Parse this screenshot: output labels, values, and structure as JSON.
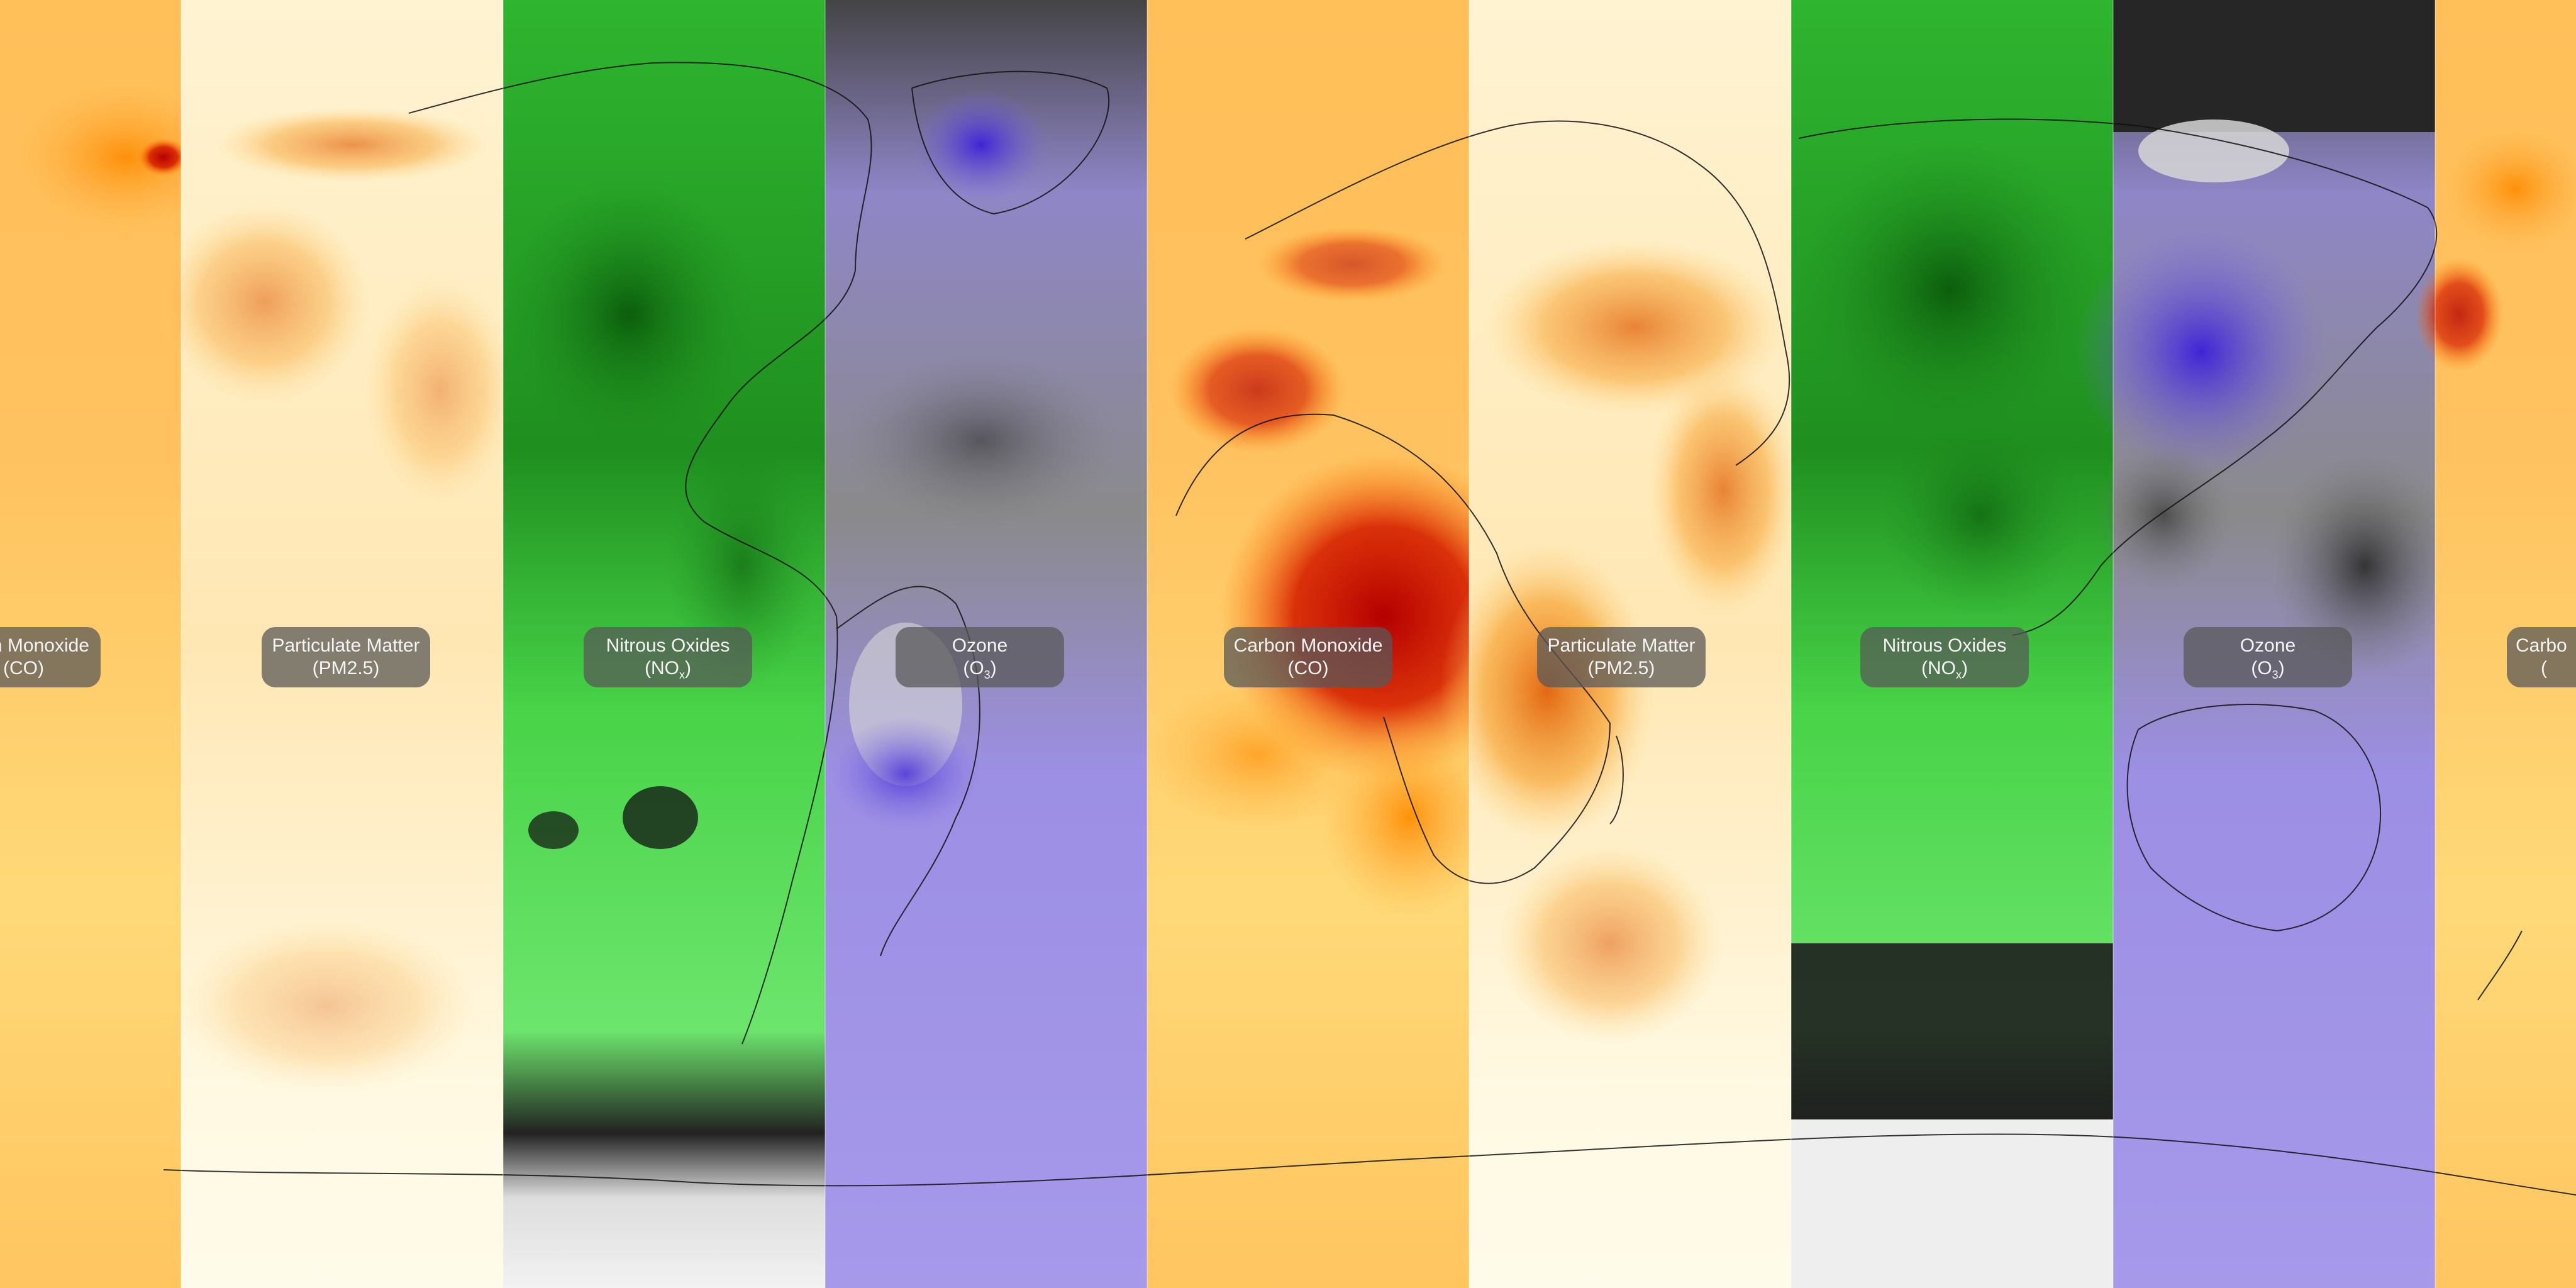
{
  "panels": [
    {
      "id": "co-a",
      "name": "Carbon Monoxide",
      "abbr": "(CO)",
      "sub": "",
      "color": "#ffc766"
    },
    {
      "id": "pm-a",
      "name": "Particulate Matter",
      "abbr": "(PM2.5)",
      "sub": "",
      "color": "#fff4d8"
    },
    {
      "id": "no-a",
      "name": "Nitrous Oxides",
      "abbr": "(NO",
      "sub": "x",
      "color": "#3fcf3f"
    },
    {
      "id": "o3-a",
      "name": "Ozone",
      "abbr": "(O",
      "sub": "3",
      "color": "#9b8de0"
    },
    {
      "id": "co-b",
      "name": "Carbon Monoxide",
      "abbr": "(CO)",
      "sub": "",
      "color": "#ffc766"
    },
    {
      "id": "pm-b",
      "name": "Particulate Matter",
      "abbr": "(PM2.5)",
      "sub": "",
      "color": "#fff4d8"
    },
    {
      "id": "no-b",
      "name": "Nitrous Oxides",
      "abbr": "(NO",
      "sub": "x",
      "color": "#3fcf3f"
    },
    {
      "id": "o3-b",
      "name": "Ozone",
      "abbr": "(O",
      "sub": "3",
      "color": "#9b8de0"
    },
    {
      "id": "co-c",
      "name": "Carbon",
      "abbr": "(",
      "sub": "",
      "color": "#ffc766"
    }
  ],
  "labels": {
    "co_a_line1": "n Monoxide",
    "co_a_line2": "(CO)",
    "pm_a_line1": "Particulate Matter",
    "pm_a_line2": "(PM2.5)",
    "no_a_line1": "Nitrous Oxides",
    "no_a_line2": "(NO",
    "no_a_sub": "x",
    "o3_a_line1": "Ozone",
    "o3_a_line2": "(O",
    "o3_a_sub": "3",
    "co_b_line1": "Carbon Monoxide",
    "co_b_line2": "(CO)",
    "pm_b_line1": "Particulate Matter",
    "pm_b_line2": "(PM2.5)",
    "no_b_line1": "Nitrous Oxides",
    "no_b_line2": "(NO",
    "no_b_sub": "x",
    "o3_b_line1": "Ozone",
    "o3_b_line2": "(O",
    "o3_b_sub": "3",
    "co_c_line1": "Carbo",
    "co_c_line2": "("
  }
}
